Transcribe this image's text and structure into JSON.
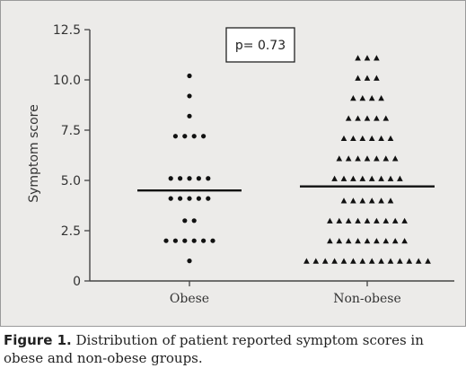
{
  "chart_data": {
    "type": "scatter",
    "ylabel": "Symptom score",
    "ylim": [
      0,
      12.5
    ],
    "yticks": [
      "0",
      "2.5",
      "5.0",
      "7.5",
      "10.0",
      "12.5"
    ],
    "ytick_values": [
      0,
      2.5,
      5.0,
      7.5,
      10.0,
      12.5
    ],
    "categories": [
      "Obese",
      "Non-obese"
    ],
    "annotation": "p= 0.73",
    "grid": false,
    "series": [
      {
        "category": "Obese",
        "marker": "circle",
        "median": 4.5,
        "points": [
          {
            "y": 10.2,
            "count": 1
          },
          {
            "y": 9.2,
            "count": 1
          },
          {
            "y": 8.2,
            "count": 1
          },
          {
            "y": 7.2,
            "count": 4
          },
          {
            "y": 5.1,
            "count": 5
          },
          {
            "y": 4.1,
            "count": 5
          },
          {
            "y": 3.0,
            "count": 2
          },
          {
            "y": 2.0,
            "count": 6
          },
          {
            "y": 1.0,
            "count": 1
          }
        ]
      },
      {
        "category": "Non-obese",
        "marker": "triangle",
        "median": 4.7,
        "points": [
          {
            "y": 11.1,
            "count": 3
          },
          {
            "y": 10.1,
            "count": 3
          },
          {
            "y": 9.1,
            "count": 4
          },
          {
            "y": 8.1,
            "count": 5
          },
          {
            "y": 7.1,
            "count": 6
          },
          {
            "y": 6.1,
            "count": 7
          },
          {
            "y": 5.1,
            "count": 8
          },
          {
            "y": 4.0,
            "count": 6
          },
          {
            "y": 3.0,
            "count": 9
          },
          {
            "y": 2.0,
            "count": 9
          },
          {
            "y": 1.0,
            "count": 14
          }
        ]
      }
    ]
  },
  "caption": {
    "label": "Figure 1.",
    "text": " Distribution of patient reported symptom scores in obese and non-obese groups."
  },
  "colors": {
    "panel_bg": "#ecebe9",
    "marker": "#111111",
    "axis": "#444444"
  }
}
